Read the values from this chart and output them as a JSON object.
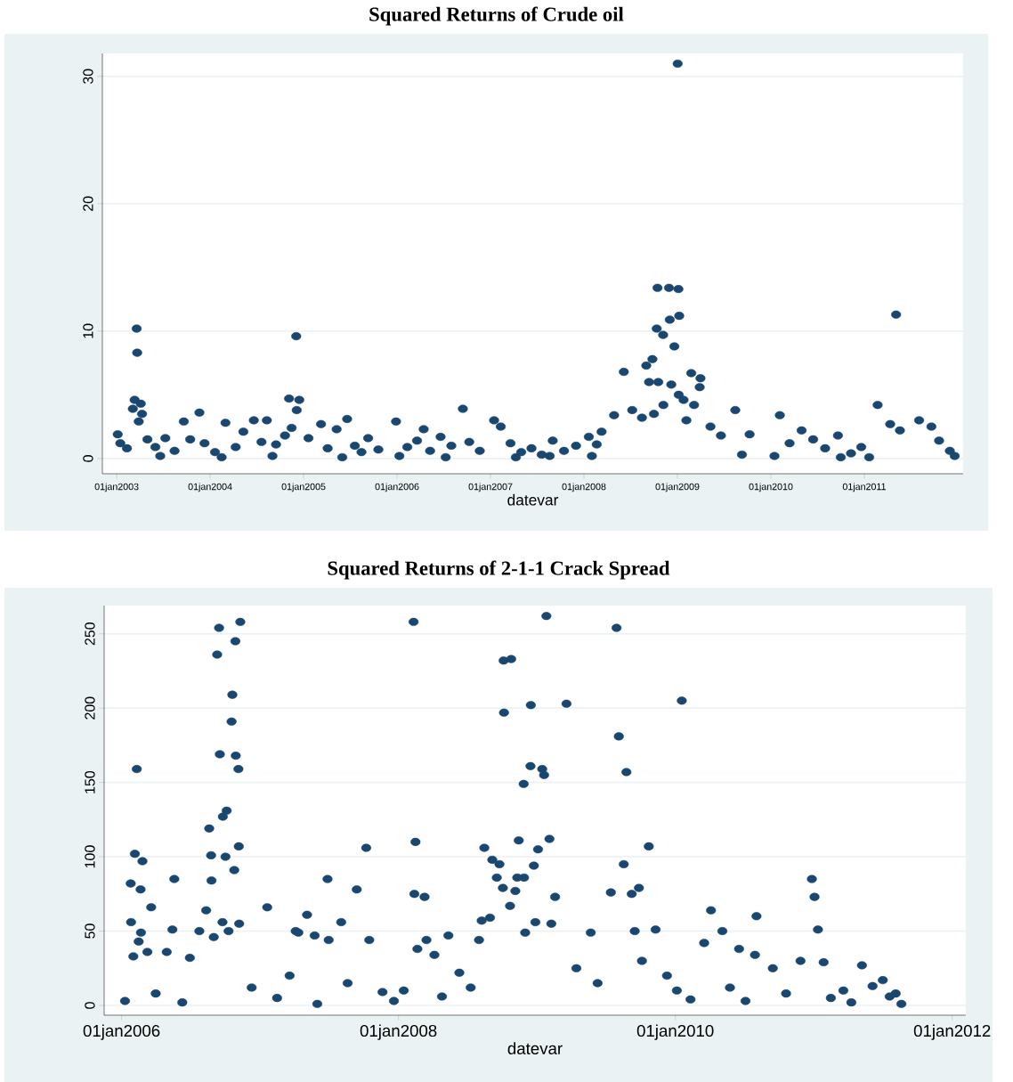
{
  "chart_data": [
    {
      "type": "scatter",
      "title": "Squared Returns of Crude oil",
      "xlabel": "datevar",
      "color": "#1a476f",
      "marker": "circle",
      "grid": "y",
      "xlim": [
        "2002-11-06",
        "2012-01-22"
      ],
      "ylim": [
        -1.2,
        31.8
      ],
      "xticks": [
        {
          "value": "2003-01-01",
          "label": "01jan2003"
        },
        {
          "value": "2004-01-01",
          "label": "01jan2004"
        },
        {
          "value": "2005-01-01",
          "label": "01jan2005"
        },
        {
          "value": "2006-01-01",
          "label": "01jan2006"
        },
        {
          "value": "2007-01-01",
          "label": "01jan2007"
        },
        {
          "value": "2008-01-01",
          "label": "01jan2008"
        },
        {
          "value": "2009-01-01",
          "label": "01jan2009"
        },
        {
          "value": "2010-01-01",
          "label": "01jan2010"
        },
        {
          "value": "2011-01-01",
          "label": "01jan2011"
        }
      ],
      "yticks": [
        0,
        10,
        20,
        30
      ],
      "x": [
        "2003-01-05",
        "2003-01-15",
        "2003-02-10",
        "2003-03-05",
        "2003-03-12",
        "2003-03-20",
        "2003-03-22",
        "2003-03-28",
        "2003-04-05",
        "2003-04-10",
        "2003-05-01",
        "2003-06-01",
        "2003-06-20",
        "2003-07-10",
        "2003-08-15",
        "2003-09-20",
        "2003-10-15",
        "2003-11-20",
        "2003-12-10",
        "2004-01-20",
        "2004-02-15",
        "2004-03-01",
        "2004-04-10",
        "2004-05-10",
        "2004-06-20",
        "2004-07-20",
        "2004-08-10",
        "2004-09-01",
        "2004-09-15",
        "2004-10-20",
        "2004-11-05",
        "2004-11-15",
        "2004-12-03",
        "2004-12-05",
        "2004-12-15",
        "2005-01-20",
        "2005-03-10",
        "2005-04-05",
        "2005-05-10",
        "2005-06-01",
        "2005-06-20",
        "2005-07-20",
        "2005-08-15",
        "2005-09-10",
        "2005-10-20",
        "2005-12-28",
        "2006-01-10",
        "2006-02-10",
        "2006-03-20",
        "2006-04-15",
        "2006-05-10",
        "2006-06-20",
        "2006-07-10",
        "2006-08-01",
        "2006-09-15",
        "2006-10-10",
        "2006-11-20",
        "2007-01-15",
        "2007-02-10",
        "2007-03-20",
        "2007-04-10",
        "2007-05-01",
        "2007-06-10",
        "2007-07-20",
        "2007-08-20",
        "2007-09-01",
        "2007-10-15",
        "2007-12-01",
        "2008-01-20",
        "2008-02-01",
        "2008-02-20",
        "2008-03-10",
        "2008-04-28",
        "2008-06-05",
        "2008-07-08",
        "2008-08-15",
        "2008-09-01",
        "2008-09-12",
        "2008-09-25",
        "2008-10-01",
        "2008-10-12",
        "2008-10-15",
        "2008-10-18",
        "2008-11-06",
        "2008-11-07",
        "2008-11-29",
        "2008-12-02",
        "2008-12-08",
        "2008-12-20",
        "2009-01-02",
        "2009-01-05",
        "2009-01-06",
        "2009-01-08",
        "2009-01-25",
        "2009-02-05",
        "2009-02-24",
        "2009-03-07",
        "2009-03-29",
        "2009-04-01",
        "2009-05-10",
        "2009-06-20",
        "2009-08-15",
        "2009-09-10",
        "2009-10-10",
        "2010-01-15",
        "2010-02-05",
        "2010-03-15",
        "2010-05-01",
        "2010-06-15",
        "2010-08-01",
        "2010-09-20",
        "2010-10-01",
        "2010-11-10",
        "2010-12-20",
        "2011-01-20",
        "2011-02-22",
        "2011-04-12",
        "2011-05-05",
        "2011-05-20",
        "2011-08-03",
        "2011-09-20",
        "2011-10-20",
        "2011-12-01",
        "2011-12-20"
      ],
      "values": [
        1.9,
        1.2,
        0.8,
        3.9,
        4.6,
        10.2,
        8.3,
        2.9,
        4.3,
        3.5,
        1.5,
        0.9,
        0.2,
        1.6,
        0.6,
        2.9,
        1.5,
        3.6,
        1.2,
        0.5,
        0.1,
        2.8,
        0.9,
        2.1,
        3.0,
        1.3,
        3.0,
        0.2,
        1.1,
        1.8,
        4.7,
        2.4,
        9.6,
        3.8,
        4.6,
        1.6,
        2.7,
        0.8,
        2.3,
        0.1,
        3.1,
        1.0,
        0.5,
        1.6,
        0.7,
        2.9,
        0.2,
        0.9,
        1.4,
        2.3,
        0.6,
        1.7,
        0.1,
        1.0,
        3.9,
        1.3,
        0.6,
        3.0,
        2.5,
        1.2,
        0.1,
        0.5,
        0.8,
        0.3,
        0.2,
        1.4,
        0.6,
        1.0,
        1.7,
        0.2,
        1.1,
        2.1,
        3.4,
        6.8,
        3.8,
        3.2,
        7.3,
        6.0,
        7.8,
        3.5,
        10.2,
        13.4,
        6.0,
        9.7,
        4.2,
        13.4,
        10.9,
        5.8,
        8.8,
        31.0,
        13.3,
        5.0,
        11.2,
        4.6,
        3.0,
        6.7,
        4.2,
        5.6,
        6.3,
        2.5,
        1.8,
        3.8,
        0.3,
        1.9,
        0.2,
        3.4,
        1.2,
        2.2,
        1.5,
        0.8,
        1.8,
        0.1,
        0.4,
        0.9,
        0.1,
        4.2,
        2.7,
        11.3,
        2.2,
        3.0,
        2.5,
        1.4,
        0.6,
        0.2
      ]
    },
    {
      "type": "scatter",
      "title": "Squared Returns of 2-1-1 Crack Spread",
      "xlabel": "datevar",
      "color": "#1a476f",
      "marker": "circle",
      "grid": "y",
      "xlim": [
        "2005-11-16",
        "2012-02-06"
      ],
      "ylim": [
        -6.6,
        269
      ],
      "xticks": [
        {
          "value": "2006-01-01",
          "label": "01jan2006"
        },
        {
          "value": "2008-01-01",
          "label": "01jan2008"
        },
        {
          "value": "2010-01-01",
          "label": "01jan2010"
        },
        {
          "value": "2012-01-01",
          "label": "01jan2012"
        }
      ],
      "yticks": [
        0,
        50,
        100,
        150,
        200,
        250
      ],
      "x": [
        "2006-01-10",
        "2006-01-25",
        "2006-01-26",
        "2006-02-01",
        "2006-02-05",
        "2006-02-10",
        "2006-02-15",
        "2006-02-20",
        "2006-02-21",
        "2006-02-25",
        "2006-03-10",
        "2006-03-20",
        "2006-04-01",
        "2006-04-30",
        "2006-05-15",
        "2006-05-20",
        "2006-06-10",
        "2006-06-30",
        "2006-07-25",
        "2006-08-12",
        "2006-08-20",
        "2006-08-25",
        "2006-08-26",
        "2006-09-01",
        "2006-09-10",
        "2006-09-15",
        "2006-09-17",
        "2006-09-24",
        "2006-09-25",
        "2006-10-02",
        "2006-10-05",
        "2006-10-10",
        "2006-10-18",
        "2006-10-20",
        "2006-10-25",
        "2006-10-28",
        "2006-10-29",
        "2006-11-05",
        "2006-11-06",
        "2006-11-07",
        "2006-11-10",
        "2006-12-10",
        "2007-01-20",
        "2007-02-15",
        "2007-03-20",
        "2007-04-05",
        "2007-04-12",
        "2007-05-05",
        "2007-05-25",
        "2007-06-01",
        "2007-06-28",
        "2007-07-01",
        "2007-08-03",
        "2007-08-20",
        "2007-09-13",
        "2007-10-08",
        "2007-10-16",
        "2007-11-20",
        "2007-12-20",
        "2008-01-15",
        "2008-02-10",
        "2008-02-12",
        "2008-02-15",
        "2008-02-20",
        "2008-03-10",
        "2008-03-15",
        "2008-04-05",
        "2008-04-25",
        "2008-05-12",
        "2008-06-10",
        "2008-07-10",
        "2008-08-01",
        "2008-08-08",
        "2008-08-15",
        "2008-08-30",
        "2008-09-05",
        "2008-09-17",
        "2008-09-24",
        "2008-10-03",
        "2008-10-05",
        "2008-10-06",
        "2008-10-22",
        "2008-10-25",
        "2008-11-05",
        "2008-11-10",
        "2008-11-14",
        "2008-11-27",
        "2008-11-28",
        "2008-12-01",
        "2008-12-15",
        "2008-12-16",
        "2008-12-24",
        "2008-12-28",
        "2009-01-04",
        "2009-01-15",
        "2009-01-20",
        "2009-01-26",
        "2009-02-03",
        "2009-02-08",
        "2009-02-18",
        "2009-03-20",
        "2009-04-15",
        "2009-05-23",
        "2009-06-10",
        "2009-07-15",
        "2009-07-30",
        "2009-08-05",
        "2009-08-18",
        "2009-08-25",
        "2009-09-08",
        "2009-09-16",
        "2009-09-27",
        "2009-10-05",
        "2009-10-23",
        "2009-11-10",
        "2009-12-10",
        "2010-01-05",
        "2010-01-18",
        "2010-02-10",
        "2010-03-18",
        "2010-04-05",
        "2010-05-05",
        "2010-05-25",
        "2010-06-18",
        "2010-07-05",
        "2010-07-30",
        "2010-08-03",
        "2010-09-15",
        "2010-10-20",
        "2010-11-27",
        "2010-12-27",
        "2011-01-03",
        "2011-01-12",
        "2011-01-27",
        "2011-02-15",
        "2011-03-20",
        "2011-04-10",
        "2011-05-08",
        "2011-06-05",
        "2011-07-02",
        "2011-07-20",
        "2011-08-05",
        "2011-08-20"
      ],
      "values": [
        3,
        82,
        56,
        33,
        102,
        159,
        43,
        78,
        49,
        97,
        36,
        66,
        8,
        36,
        51,
        85,
        2,
        32,
        50,
        64,
        119,
        101,
        84,
        46,
        236,
        254,
        169,
        56,
        127,
        100,
        131,
        50,
        191,
        209,
        91,
        245,
        168,
        159,
        107,
        55,
        258,
        12,
        66,
        5,
        20,
        50,
        49,
        61,
        47,
        1,
        85,
        44,
        56,
        15,
        78,
        106,
        44,
        9,
        3,
        10,
        258,
        75,
        110,
        38,
        73,
        44,
        34,
        6,
        47,
        22,
        12,
        44,
        57,
        106,
        59,
        98,
        86,
        95,
        79,
        232,
        197,
        67,
        233,
        77,
        86,
        111,
        149,
        86,
        49,
        161,
        202,
        94,
        56,
        105,
        159,
        155,
        262,
        112,
        55,
        73,
        203,
        25,
        49,
        15,
        76,
        254,
        181,
        95,
        157,
        75,
        50,
        79,
        30,
        107,
        51,
        20,
        10,
        205,
        4,
        42,
        64,
        50,
        12,
        38,
        3,
        34,
        60,
        25,
        8,
        30,
        85,
        73,
        51,
        29,
        5,
        10,
        2,
        27,
        13,
        17,
        6,
        8,
        1
      ]
    }
  ]
}
